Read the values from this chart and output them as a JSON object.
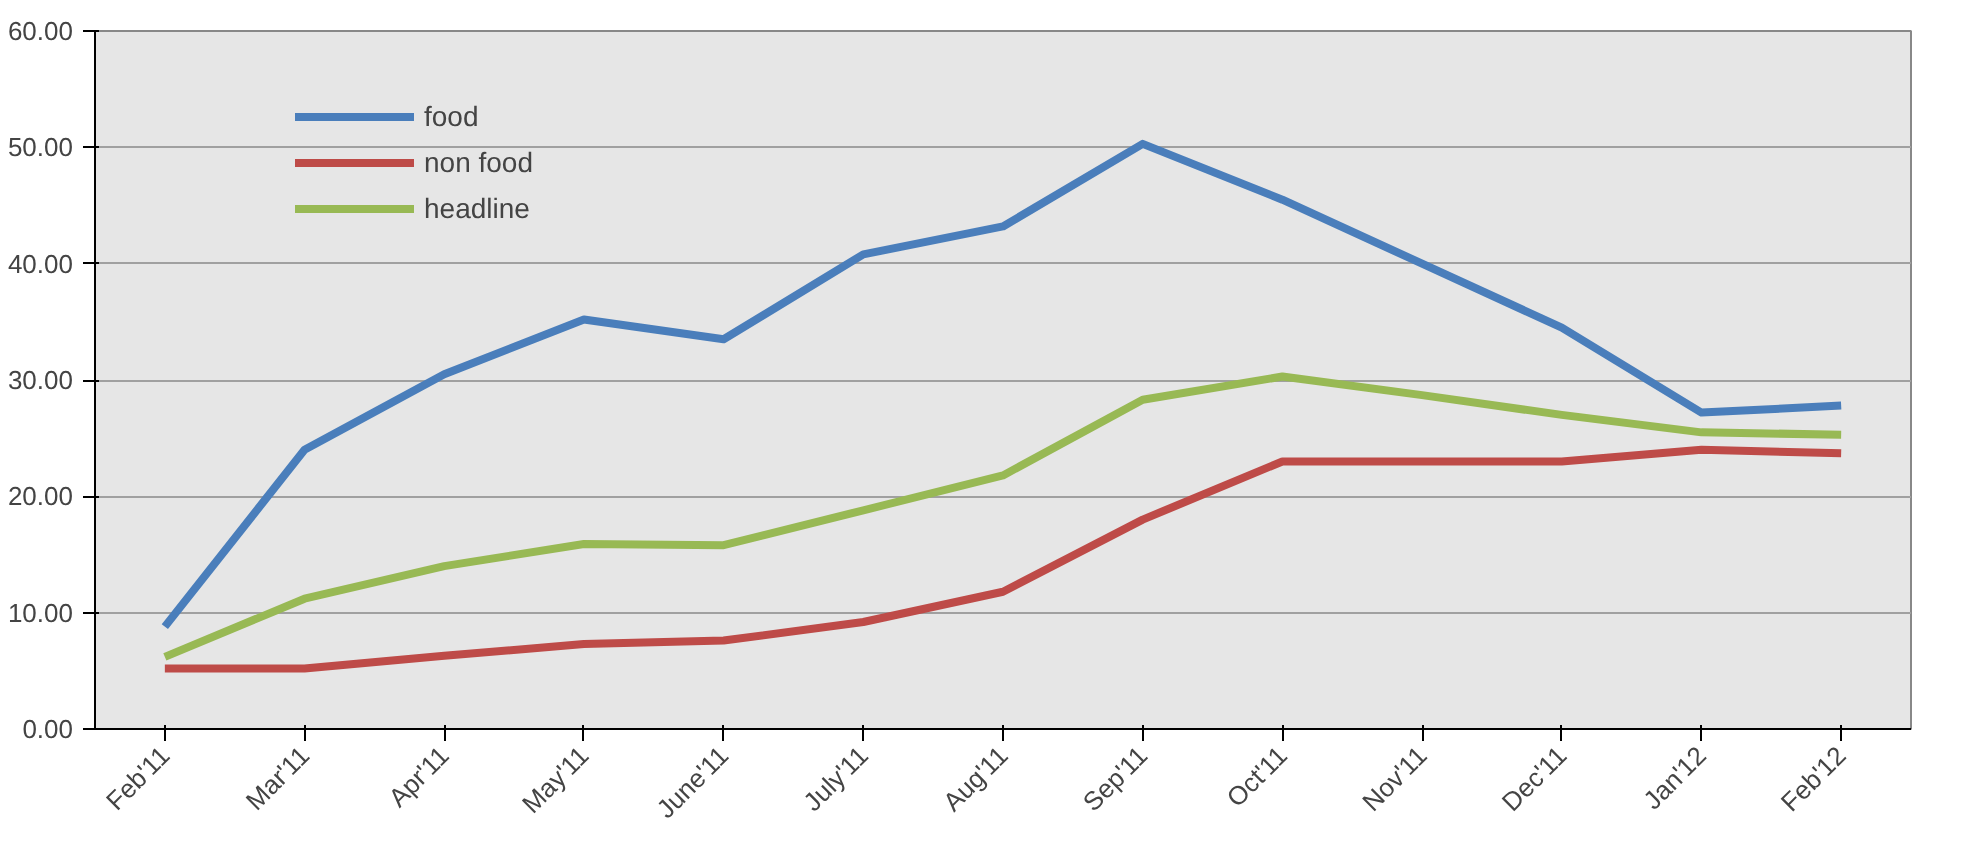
{
  "chart_data": {
    "type": "line",
    "categories": [
      "Feb'11",
      "Mar'11",
      "Apr'11",
      "May'11",
      "June'11",
      "July'11",
      "Aug'11",
      "Sep'11",
      "Oct'11",
      "Nov'11",
      "Dec'11",
      "Jan'12",
      "Feb'12"
    ],
    "series": [
      {
        "name": "food",
        "color": "#4a7ebb",
        "values": [
          8.8,
          24.0,
          30.5,
          35.2,
          33.5,
          40.8,
          43.2,
          50.3,
          45.5,
          40.0,
          34.5,
          27.2,
          27.8
        ]
      },
      {
        "name": "non food",
        "color": "#be4b48",
        "values": [
          5.2,
          5.2,
          6.3,
          7.3,
          7.6,
          9.2,
          11.8,
          18.0,
          23.0,
          23.0,
          23.0,
          24.0,
          23.7
        ]
      },
      {
        "name": "headline",
        "color": "#98b954",
        "values": [
          6.2,
          11.2,
          14.0,
          15.9,
          15.8,
          18.8,
          21.8,
          28.3,
          30.3,
          28.7,
          27.0,
          25.5,
          25.3
        ]
      }
    ],
    "ylim": [
      0,
      60
    ],
    "yticks": [
      {
        "value": 0,
        "label": "0.00"
      },
      {
        "value": 10,
        "label": "10.00"
      },
      {
        "value": 20,
        "label": "20.00"
      },
      {
        "value": 30,
        "label": "30.00"
      },
      {
        "value": 40,
        "label": "40.00"
      },
      {
        "value": 50,
        "label": "50.00"
      },
      {
        "value": 60,
        "label": "60.00"
      }
    ],
    "grid": "y",
    "legend": "top left",
    "marker": "none",
    "line_style": "solid"
  }
}
